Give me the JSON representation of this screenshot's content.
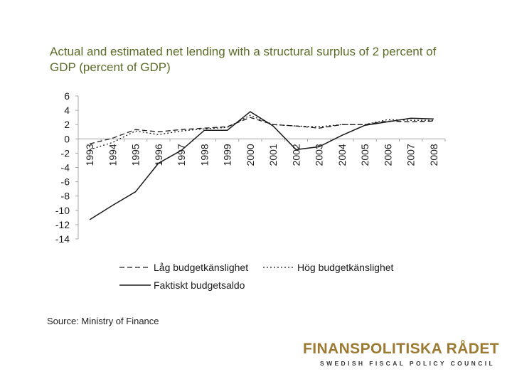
{
  "title": "Actual and estimated net lending with a structural surplus of 2 percent of GDP (percent of GDP)",
  "source": "Source: Ministry of Finance",
  "logo": {
    "name": "FINANSPOLITISKA RÅDET",
    "subtitle": "SWEDISH FISCAL POLICY COUNCIL"
  },
  "colors": {
    "title": "#5a6b27",
    "logo": "#9c7a32",
    "line": "#1a1a1a",
    "axis": "#a6a6a6"
  },
  "chart_data": {
    "type": "line",
    "title": "Actual and estimated net lending with a structural surplus of 2 percent of GDP (percent of GDP)",
    "xlabel": "",
    "ylabel": "",
    "categories": [
      "1993",
      "1994",
      "1995",
      "1996",
      "1997",
      "1998",
      "1999",
      "2000",
      "2001",
      "2002",
      "2003",
      "2004",
      "2005",
      "2006",
      "2007",
      "2008"
    ],
    "ylim": [
      -14,
      6
    ],
    "yticks": [
      6,
      4,
      2,
      0,
      -2,
      -4,
      -6,
      -8,
      -10,
      -12,
      -14
    ],
    "grid": false,
    "legend_position": "bottom",
    "series": [
      {
        "name": "Låg budgetkänslighet",
        "style": "dashed",
        "values": [
          -0.7,
          0.1,
          1.3,
          1.0,
          1.3,
          1.5,
          1.7,
          3.0,
          2.0,
          1.8,
          1.5,
          2.0,
          2.0,
          2.5,
          2.4,
          2.5
        ]
      },
      {
        "name": "Hög budgetkänslighet",
        "style": "dotted",
        "values": [
          -1.5,
          -0.5,
          1.1,
          0.6,
          1.1,
          1.4,
          1.6,
          3.3,
          2.0,
          1.8,
          1.7,
          2.0,
          2.0,
          2.7,
          2.6,
          2.6
        ]
      },
      {
        "name": "Faktiskt budgetsaldo",
        "style": "solid",
        "values": [
          -11.3,
          -9.3,
          -7.4,
          -3.4,
          -1.6,
          1.2,
          1.2,
          3.8,
          1.8,
          -1.5,
          -1.1,
          0.5,
          1.9,
          2.4,
          2.9,
          2.8
        ]
      }
    ]
  }
}
